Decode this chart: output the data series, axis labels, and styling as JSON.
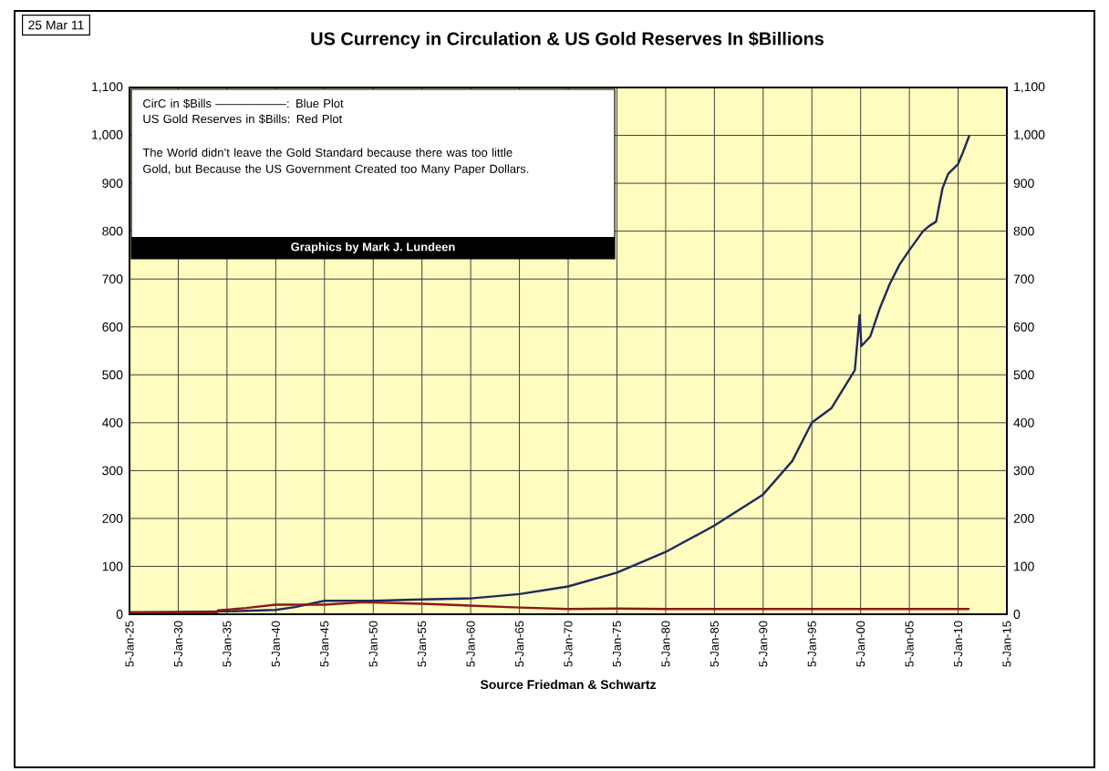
{
  "chart_data": {
    "type": "line",
    "title": "US Currency in Circulation & US Gold Reserves In $Billions",
    "xlabel": "Source Friedman & Schwartz",
    "annotations": [
      "25 Mar 11",
      "CirC in $Bills ——————: Blue Plot",
      "US Gold Reserves in $Bills:  Red Plot",
      "The World didn’t leave the Gold Standard because there was too little Gold, but Because the US Government Created too Many Paper Dollars.",
      "Graphics by Mark J. Lundeen"
    ],
    "xlim": [
      "1925-01-05",
      "2015-01-05"
    ],
    "xticks": [
      {
        "value": "1925-01-05",
        "label": "5-Jan-25"
      },
      {
        "value": "1930-01-05",
        "label": "5-Jan-30"
      },
      {
        "value": "1935-01-05",
        "label": "5-Jan-35"
      },
      {
        "value": "1940-01-05",
        "label": "5-Jan-40"
      },
      {
        "value": "1945-01-05",
        "label": "5-Jan-45"
      },
      {
        "value": "1950-01-05",
        "label": "5-Jan-50"
      },
      {
        "value": "1955-01-05",
        "label": "5-Jan-55"
      },
      {
        "value": "1960-01-05",
        "label": "5-Jan-60"
      },
      {
        "value": "1965-01-05",
        "label": "5-Jan-65"
      },
      {
        "value": "1970-01-05",
        "label": "5-Jan-70"
      },
      {
        "value": "1975-01-05",
        "label": "5-Jan-75"
      },
      {
        "value": "1980-01-05",
        "label": "5-Jan-80"
      },
      {
        "value": "1985-01-05",
        "label": "5-Jan-85"
      },
      {
        "value": "1990-01-05",
        "label": "5-Jan-90"
      },
      {
        "value": "1995-01-05",
        "label": "5-Jan-95"
      },
      {
        "value": "2000-01-05",
        "label": "5-Jan-00"
      },
      {
        "value": "2005-01-05",
        "label": "5-Jan-05"
      },
      {
        "value": "2010-01-05",
        "label": "5-Jan-10"
      },
      {
        "value": "2015-01-05",
        "label": "5-Jan-15"
      }
    ],
    "ylim": [
      0,
      1100
    ],
    "yticks": [
      0,
      100,
      200,
      300,
      400,
      500,
      600,
      700,
      800,
      900,
      {
        "value": 1000,
        "label": "1,000"
      },
      {
        "value": 1100,
        "label": "1,100"
      }
    ],
    "y2lim": [
      0,
      1100
    ],
    "y2ticks": [
      0,
      100,
      200,
      300,
      400,
      500,
      600,
      700,
      800,
      900,
      {
        "value": 1000,
        "label": "1,000"
      },
      {
        "value": 1100,
        "label": "1,100"
      }
    ],
    "grid": true,
    "series": [
      {
        "color": "#1f2a5a",
        "x": [
          "1925-01-05",
          "1930",
          "1935",
          "1940",
          "1942",
          "1945",
          "1948",
          "1950",
          "1955",
          "1960",
          "1965",
          "1970",
          "1975",
          "1980",
          "1985",
          "1990",
          "1993",
          "1995",
          "1997",
          "1999-06",
          "1999-12",
          "2000-02",
          "2001",
          "2002",
          "2003",
          "2004",
          "2005",
          "2006-06",
          "2007",
          "2007-10",
          "2008-06",
          "2009",
          "2010",
          "2010-06",
          "2011-03"
        ],
        "values": [
          4,
          5,
          6,
          9,
          15,
          28,
          28,
          28,
          31,
          33,
          42,
          58,
          87,
          130,
          185,
          250,
          320,
          400,
          430,
          510,
          625,
          560,
          580,
          640,
          690,
          730,
          760,
          800,
          810,
          820,
          890,
          920,
          940,
          960,
          1000
        ]
      },
      {
        "color": "#8b1a1a",
        "x": [
          "1925-01-05",
          "1930",
          "1934",
          "1934-02",
          "1937",
          "1940",
          "1945",
          "1949",
          "1955",
          "1960",
          "1965",
          "1970",
          "1975",
          "1980",
          "1990",
          "2000",
          "2011-03"
        ],
        "values": [
          4,
          4,
          4,
          8,
          13,
          20,
          20,
          25,
          22,
          18,
          14,
          11,
          12,
          11,
          11,
          11,
          11
        ]
      }
    ]
  }
}
